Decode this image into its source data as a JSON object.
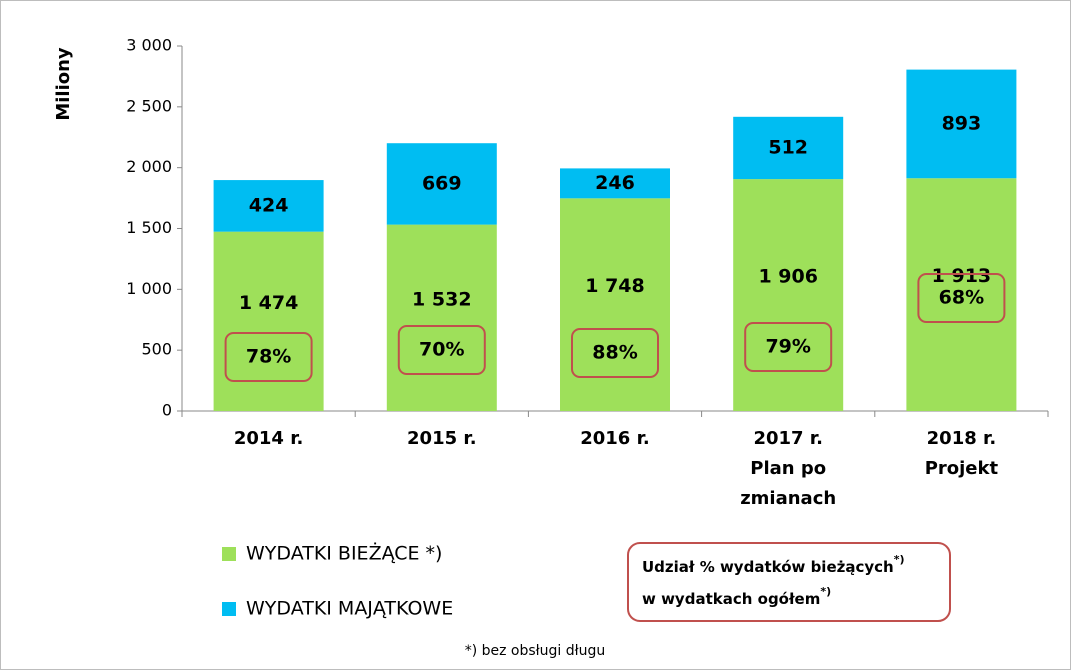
{
  "chart_data": {
    "type": "stacked_bar",
    "y_axis_label": "Miliony",
    "categories": [
      [
        "2014 r."
      ],
      [
        "2015 r."
      ],
      [
        "2016 r."
      ],
      [
        "2017 r.",
        "Plan po",
        "zmianach"
      ],
      [
        "2018 r.",
        "Projekt"
      ]
    ],
    "series": [
      {
        "name": "WYDATKI BIEŻĄCE *)",
        "color": "#9ee05a",
        "values": [
          1474,
          1532,
          1748,
          1906,
          1913
        ],
        "value_labels": [
          "1 474",
          "1 532",
          "1 748",
          "1 906",
          "1 913"
        ]
      },
      {
        "name": "WYDATKI MAJĄTKOWE",
        "color": "#00bdf2",
        "values": [
          424,
          669,
          246,
          512,
          893
        ]
      }
    ],
    "shares": {
      "values": [
        78,
        70,
        88,
        79,
        68
      ],
      "value_labels": [
        "78%",
        "70%",
        "88%",
        "79%",
        "68%"
      ],
      "color": "#c0504d"
    },
    "share_legend": [
      [
        "Udział % wydatków bieżących",
        "*)"
      ],
      [
        "w wydatkach ogółem",
        "*)"
      ]
    ],
    "footnote": "*) bez obsługi długu",
    "ylim": [
      0,
      3000
    ],
    "yticks": [
      0,
      500,
      {
        "value": 1000,
        "label": "1 000"
      },
      {
        "value": 1500,
        "label": "1 500"
      },
      {
        "value": 2000,
        "label": "2 000"
      },
      {
        "value": 2500,
        "label": "2 500"
      },
      {
        "value": 3000,
        "label": "3 000"
      }
    ]
  }
}
